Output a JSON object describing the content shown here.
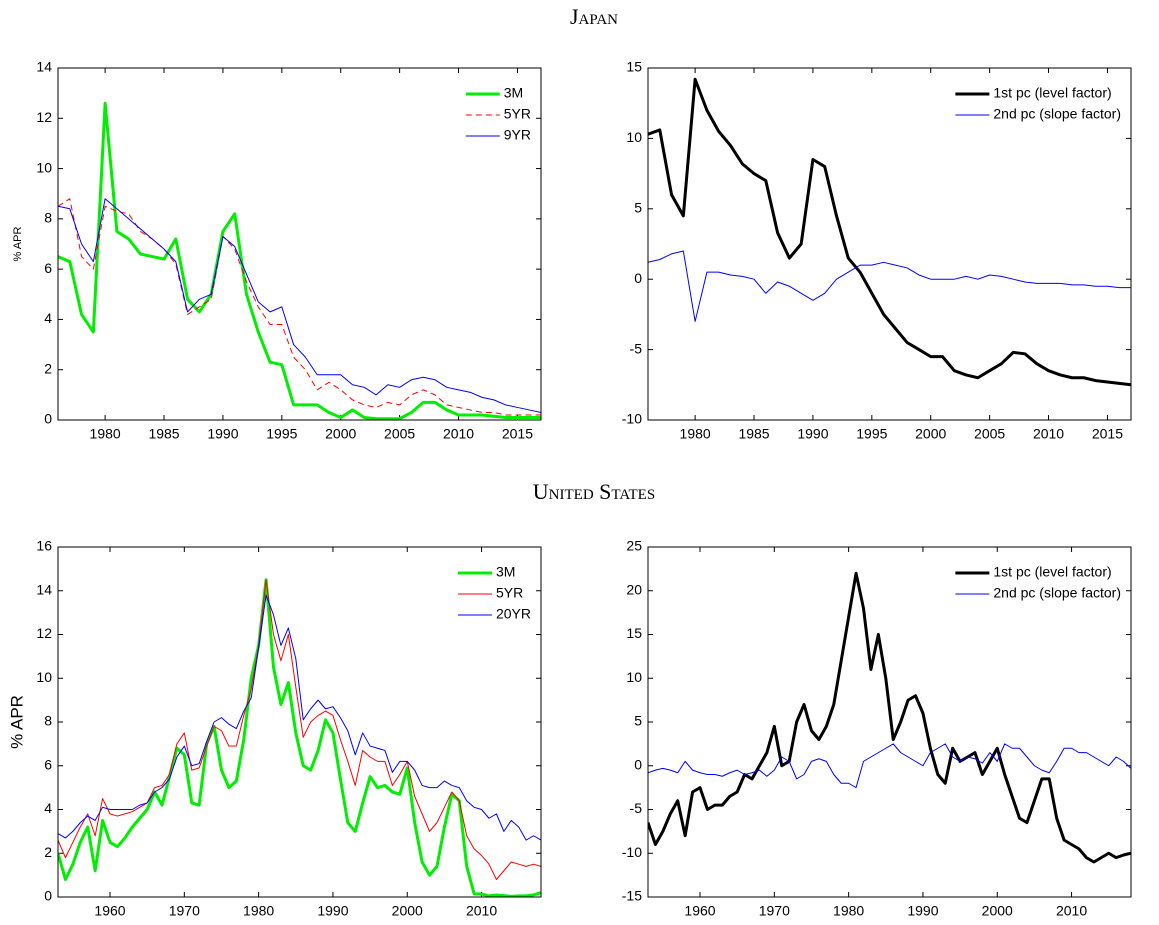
{
  "section_titles": [
    "Japan",
    "United States"
  ],
  "chart_data": [
    {
      "type": "line",
      "ylabel": "% APR",
      "legend": "upper right",
      "x": [
        1976,
        1977,
        1978,
        1979,
        1980,
        1981,
        1982,
        1983,
        1984,
        1985,
        1986,
        1987,
        1988,
        1989,
        1990,
        1991,
        1992,
        1993,
        1994,
        1995,
        1996,
        1997,
        1998,
        1999,
        2000,
        2001,
        2002,
        2003,
        2004,
        2005,
        2006,
        2007,
        2008,
        2009,
        2010,
        2011,
        2012,
        2013,
        2014,
        2015,
        2016,
        2017
      ],
      "xlim": [
        1976,
        2017
      ],
      "xticks": [
        1980,
        1985,
        1990,
        1995,
        2000,
        2005,
        2010,
        2015
      ],
      "ylim": [
        0,
        14
      ],
      "yticks": [
        0,
        2,
        4,
        6,
        8,
        10,
        12,
        14
      ],
      "series": [
        {
          "name": "3M",
          "color": "#00ee00",
          "width": 3,
          "dash": false,
          "values": [
            6.5,
            6.3,
            4.2,
            3.5,
            12.6,
            7.5,
            7.2,
            6.6,
            6.5,
            6.4,
            7.2,
            4.8,
            4.3,
            5.0,
            7.5,
            8.2,
            5.0,
            3.5,
            2.3,
            2.2,
            0.6,
            0.6,
            0.6,
            0.3,
            0.1,
            0.4,
            0.1,
            0.05,
            0.05,
            0.05,
            0.3,
            0.7,
            0.7,
            0.4,
            0.2,
            0.2,
            0.2,
            0.15,
            0.1,
            0.1,
            0.1,
            0.1
          ]
        },
        {
          "name": "5YR",
          "color": "#ff0000",
          "width": 1,
          "dash": true,
          "values": [
            8.5,
            8.8,
            6.5,
            6.0,
            8.5,
            8.3,
            8.2,
            7.5,
            7.2,
            6.8,
            6.2,
            4.2,
            4.5,
            4.8,
            7.3,
            6.8,
            5.5,
            4.5,
            3.8,
            3.8,
            2.5,
            2.0,
            1.2,
            1.5,
            1.2,
            0.8,
            0.6,
            0.5,
            0.7,
            0.6,
            1.0,
            1.2,
            1.0,
            0.6,
            0.5,
            0.4,
            0.3,
            0.3,
            0.2,
            0.2,
            0.2,
            0.2
          ]
        },
        {
          "name": "9YR",
          "color": "#0000ff",
          "width": 1,
          "dash": false,
          "values": [
            8.5,
            8.4,
            7.0,
            6.3,
            8.8,
            8.4,
            8.0,
            7.6,
            7.2,
            6.8,
            6.3,
            4.3,
            4.8,
            5.0,
            7.3,
            6.9,
            5.8,
            4.7,
            4.3,
            4.5,
            3.0,
            2.5,
            1.8,
            1.8,
            1.8,
            1.4,
            1.3,
            1.0,
            1.4,
            1.3,
            1.6,
            1.7,
            1.6,
            1.3,
            1.2,
            1.1,
            0.9,
            0.8,
            0.6,
            0.5,
            0.4,
            0.3
          ]
        }
      ]
    },
    {
      "type": "line",
      "legend": "upper right",
      "x": [
        1976,
        1977,
        1978,
        1979,
        1980,
        1981,
        1982,
        1983,
        1984,
        1985,
        1986,
        1987,
        1988,
        1989,
        1990,
        1991,
        1992,
        1993,
        1994,
        1995,
        1996,
        1997,
        1998,
        1999,
        2000,
        2001,
        2002,
        2003,
        2004,
        2005,
        2006,
        2007,
        2008,
        2009,
        2010,
        2011,
        2012,
        2013,
        2014,
        2015,
        2016,
        2017
      ],
      "xlim": [
        1976,
        2017
      ],
      "xticks": [
        1980,
        1985,
        1990,
        1995,
        2000,
        2005,
        2010,
        2015
      ],
      "ylim": [
        -10,
        15
      ],
      "yticks": [
        -10,
        -5,
        0,
        5,
        10,
        15
      ],
      "series": [
        {
          "name": "1st pc (level factor)",
          "color": "#000000",
          "width": 3,
          "dash": false,
          "values": [
            10.3,
            10.6,
            6.0,
            4.5,
            14.2,
            12.0,
            10.5,
            9.5,
            8.2,
            7.5,
            7.0,
            3.3,
            1.5,
            2.5,
            8.5,
            8.0,
            4.5,
            1.5,
            0.5,
            -1.0,
            -2.5,
            -3.5,
            -4.5,
            -5.0,
            -5.5,
            -5.5,
            -6.5,
            -6.8,
            -7.0,
            -6.5,
            -6.0,
            -5.2,
            -5.3,
            -6.0,
            -6.5,
            -6.8,
            -7.0,
            -7.0,
            -7.2,
            -7.3,
            -7.4,
            -7.5
          ]
        },
        {
          "name": "2nd pc (slope factor)",
          "color": "#0000ff",
          "width": 1,
          "dash": false,
          "values": [
            1.2,
            1.4,
            1.8,
            2.0,
            -3.0,
            0.5,
            0.5,
            0.3,
            0.2,
            0.0,
            -1.0,
            -0.2,
            -0.5,
            -1.0,
            -1.5,
            -1.0,
            0.0,
            0.5,
            1.0,
            1.0,
            1.2,
            1.0,
            0.8,
            0.3,
            0.0,
            0.0,
            0.0,
            0.2,
            0.0,
            0.3,
            0.2,
            0.0,
            -0.2,
            -0.3,
            -0.3,
            -0.3,
            -0.4,
            -0.4,
            -0.5,
            -0.5,
            -0.6,
            -0.6
          ]
        }
      ]
    },
    {
      "type": "line",
      "ylabel": "% APR",
      "legend": "upper right",
      "x": [
        1953,
        1954,
        1955,
        1956,
        1957,
        1958,
        1959,
        1960,
        1961,
        1962,
        1963,
        1964,
        1965,
        1966,
        1967,
        1968,
        1969,
        1970,
        1971,
        1972,
        1973,
        1974,
        1975,
        1976,
        1977,
        1978,
        1979,
        1980,
        1981,
        1982,
        1983,
        1984,
        1985,
        1986,
        1987,
        1988,
        1989,
        1990,
        1991,
        1992,
        1993,
        1994,
        1995,
        1996,
        1997,
        1998,
        1999,
        2000,
        2001,
        2002,
        2003,
        2004,
        2005,
        2006,
        2007,
        2008,
        2009,
        2010,
        2011,
        2012,
        2013,
        2014,
        2015,
        2016,
        2017,
        2018
      ],
      "xlim": [
        1953,
        2018
      ],
      "xticks": [
        1960,
        1970,
        1980,
        1990,
        2000,
        2010
      ],
      "ylim": [
        0,
        16
      ],
      "yticks": [
        0,
        2,
        4,
        6,
        8,
        10,
        12,
        14,
        16
      ],
      "series": [
        {
          "name": "3M",
          "color": "#00ee00",
          "width": 3,
          "dash": false,
          "values": [
            2.0,
            0.8,
            1.5,
            2.5,
            3.2,
            1.2,
            3.5,
            2.5,
            2.3,
            2.7,
            3.2,
            3.6,
            4.0,
            4.8,
            4.2,
            5.5,
            6.8,
            6.5,
            4.3,
            4.2,
            7.0,
            7.8,
            5.8,
            5.0,
            5.3,
            7.2,
            10.0,
            11.5,
            14.5,
            10.5,
            8.8,
            9.8,
            7.5,
            6.0,
            5.8,
            6.7,
            8.1,
            7.5,
            5.4,
            3.4,
            3.0,
            4.3,
            5.5,
            5.0,
            5.1,
            4.8,
            4.7,
            5.9,
            3.4,
            1.6,
            1.0,
            1.4,
            3.2,
            4.7,
            4.4,
            1.4,
            0.15,
            0.14,
            0.05,
            0.09,
            0.06,
            0.03,
            0.05,
            0.05,
            0.1,
            0.2
          ]
        },
        {
          "name": "5YR",
          "color": "#ff0000",
          "width": 1,
          "dash": false,
          "values": [
            2.6,
            1.8,
            2.5,
            3.2,
            3.8,
            2.8,
            4.5,
            3.8,
            3.7,
            3.8,
            3.9,
            4.1,
            4.3,
            5.0,
            5.1,
            5.6,
            7.0,
            7.5,
            5.8,
            5.9,
            6.9,
            7.8,
            7.6,
            6.9,
            6.9,
            8.3,
            9.5,
            11.5,
            14.5,
            12.0,
            10.8,
            12.0,
            9.6,
            7.3,
            8.0,
            8.3,
            8.5,
            8.3,
            7.2,
            6.2,
            5.1,
            6.7,
            6.4,
            6.2,
            6.2,
            5.1,
            5.6,
            6.2,
            4.6,
            3.8,
            3.0,
            3.4,
            4.1,
            4.8,
            4.4,
            2.8,
            2.2,
            1.9,
            1.5,
            0.8,
            1.2,
            1.6,
            1.5,
            1.4,
            1.5,
            1.4
          ]
        },
        {
          "name": "20YR",
          "color": "#0000ff",
          "width": 1,
          "dash": false,
          "values": [
            2.9,
            2.7,
            3.0,
            3.4,
            3.7,
            3.5,
            4.1,
            4.0,
            4.0,
            4.0,
            4.0,
            4.2,
            4.3,
            4.8,
            5.0,
            5.4,
            6.4,
            6.9,
            6.0,
            6.1,
            7.1,
            8.0,
            8.2,
            7.9,
            7.7,
            8.5,
            9.1,
            11.4,
            13.8,
            12.9,
            11.5,
            12.3,
            10.9,
            8.1,
            8.6,
            9.0,
            8.6,
            8.7,
            8.2,
            7.6,
            6.5,
            7.5,
            6.9,
            6.8,
            6.7,
            5.7,
            6.2,
            6.2,
            5.8,
            5.1,
            5.0,
            5.0,
            5.3,
            5.1,
            5.0,
            4.4,
            4.1,
            4.0,
            3.6,
            3.8,
            3.0,
            3.5,
            3.2,
            2.6,
            2.8,
            2.6
          ]
        }
      ]
    },
    {
      "type": "line",
      "legend": "upper right",
      "x": [
        1953,
        1954,
        1955,
        1956,
        1957,
        1958,
        1959,
        1960,
        1961,
        1962,
        1963,
        1964,
        1965,
        1966,
        1967,
        1968,
        1969,
        1970,
        1971,
        1972,
        1973,
        1974,
        1975,
        1976,
        1977,
        1978,
        1979,
        1980,
        1981,
        1982,
        1983,
        1984,
        1985,
        1986,
        1987,
        1988,
        1989,
        1990,
        1991,
        1992,
        1993,
        1994,
        1995,
        1996,
        1997,
        1998,
        1999,
        2000,
        2001,
        2002,
        2003,
        2004,
        2005,
        2006,
        2007,
        2008,
        2009,
        2010,
        2011,
        2012,
        2013,
        2014,
        2015,
        2016,
        2017,
        2018
      ],
      "xlim": [
        1953,
        2018
      ],
      "xticks": [
        1960,
        1970,
        1980,
        1990,
        2000,
        2010
      ],
      "ylim": [
        -15,
        25
      ],
      "yticks": [
        -15,
        -10,
        -5,
        0,
        5,
        10,
        15,
        20,
        25
      ],
      "series": [
        {
          "name": "1st pc (level factor)",
          "color": "#000000",
          "width": 3,
          "dash": false,
          "values": [
            -6.5,
            -9.0,
            -7.5,
            -5.5,
            -4.0,
            -8.0,
            -3.0,
            -2.5,
            -5.0,
            -4.5,
            -4.5,
            -3.5,
            -3.0,
            -1.0,
            -1.5,
            0.0,
            1.5,
            4.5,
            0.0,
            0.5,
            5.0,
            7.0,
            4.0,
            3.0,
            4.5,
            7.0,
            12.0,
            17.0,
            22.0,
            18.0,
            11.0,
            15.0,
            10.0,
            3.0,
            5.0,
            7.5,
            8.0,
            6.0,
            2.0,
            -1.0,
            -2.0,
            2.0,
            0.5,
            1.0,
            1.5,
            -1.0,
            0.5,
            2.0,
            -1.0,
            -3.5,
            -6.0,
            -6.5,
            -4.0,
            -1.5,
            -1.5,
            -6.0,
            -8.5,
            -9.0,
            -9.5,
            -10.5,
            -11.0,
            -10.5,
            -10.0,
            -10.5,
            -10.2,
            -10.0
          ]
        },
        {
          "name": "2nd pc (slope factor)",
          "color": "#0000ff",
          "width": 1,
          "dash": false,
          "values": [
            -0.8,
            -0.5,
            -0.3,
            -0.5,
            -0.8,
            0.5,
            -0.5,
            -0.8,
            -1.0,
            -1.0,
            -1.2,
            -0.8,
            -0.5,
            -1.0,
            -0.8,
            -0.5,
            -1.2,
            -0.5,
            1.0,
            0.5,
            -1.5,
            -1.0,
            0.5,
            0.8,
            0.5,
            -1.0,
            -2.0,
            -2.0,
            -2.5,
            0.5,
            1.0,
            1.5,
            2.0,
            2.5,
            1.5,
            1.0,
            0.5,
            0.0,
            1.5,
            2.0,
            2.5,
            1.0,
            0.5,
            1.0,
            0.8,
            0.3,
            1.5,
            0.5,
            2.5,
            2.0,
            2.0,
            1.0,
            0.0,
            -0.5,
            -0.8,
            0.5,
            2.0,
            2.0,
            1.5,
            1.5,
            1.0,
            0.5,
            0.0,
            1.0,
            0.5,
            -0.3
          ]
        }
      ]
    }
  ]
}
